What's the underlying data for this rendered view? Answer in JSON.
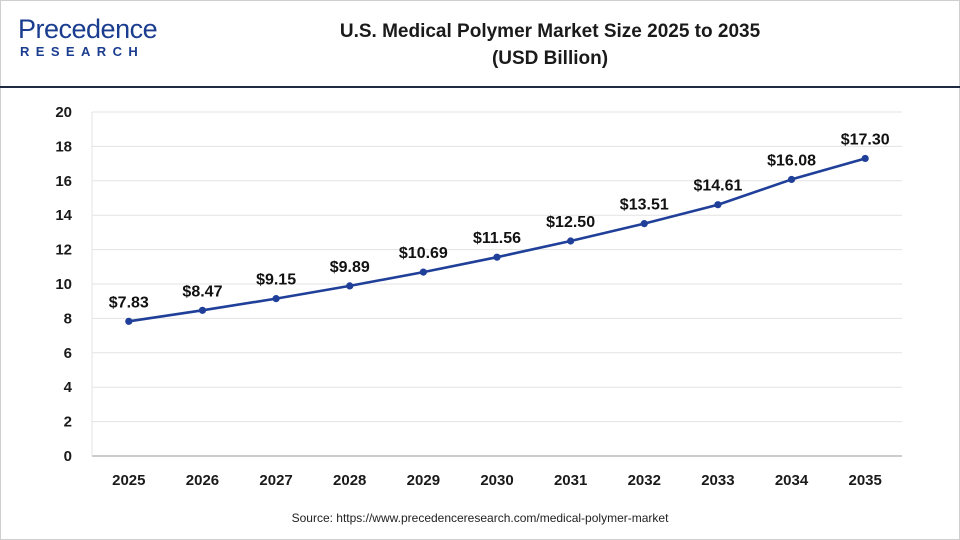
{
  "header": {
    "logo_main": "Precedence",
    "logo_sub": "RESEARCH",
    "title_line1": "U.S. Medical Polymer Market Size 2025 to 2035",
    "title_line2": "(USD Billion)"
  },
  "source": "Source: https://www.precedenceresearch.com/medical-polymer-market",
  "colors": {
    "line": "#1f3f99",
    "marker": "#1f3f99",
    "brand": "#1a3d8f",
    "header_rule": "#1f2a44"
  },
  "chart_data": {
    "type": "line",
    "title": "U.S. Medical Polymer Market Size 2025 to 2035",
    "subtitle": "(USD Billion)",
    "xlabel": "",
    "ylabel": "",
    "x": [
      "2025",
      "2026",
      "2027",
      "2028",
      "2029",
      "2030",
      "2031",
      "2032",
      "2033",
      "2034",
      "2035"
    ],
    "series": [
      {
        "values": [
          7.83,
          8.47,
          9.15,
          9.89,
          10.69,
          11.56,
          12.5,
          13.51,
          14.61,
          16.08,
          17.3
        ],
        "labels": [
          "$7.83",
          "$8.47",
          "$9.15",
          "$9.89",
          "$10.69",
          "$11.56",
          "$12.50",
          "$13.51",
          "$14.61",
          "$16.08",
          "$17.30"
        ]
      }
    ],
    "ylim": [
      0,
      20
    ],
    "yticks": [
      0,
      2,
      4,
      6,
      8,
      10,
      12,
      14,
      16,
      18,
      20
    ],
    "grid": true,
    "legend": "none"
  }
}
